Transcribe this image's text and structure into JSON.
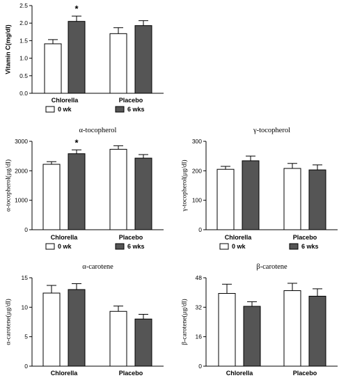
{
  "colors": {
    "bar_0wk": "#ffffff",
    "bar_6wks": "#555555",
    "stroke": "#000000"
  },
  "chart_data": [
    {
      "id": "vitc",
      "type": "bar",
      "title": "",
      "ylabel": "Vitamin C(mg/dl)",
      "ylim": [
        0,
        2.5
      ],
      "yticks": [
        "0.0",
        "0.5",
        "1.0",
        "1.5",
        "2.0",
        "2.5"
      ],
      "categories": [
        "Chlorella",
        "Placebo"
      ],
      "series": [
        {
          "name": "0 wk",
          "values": [
            1.41,
            1.7
          ],
          "errors": [
            0.12,
            0.17
          ]
        },
        {
          "name": "6 wks",
          "values": [
            2.05,
            1.93
          ],
          "errors": [
            0.15,
            0.14
          ]
        }
      ],
      "annotations": [
        {
          "text": "*",
          "category": 0,
          "series": 1
        }
      ],
      "legend": [
        "0 wk",
        "6 wks"
      ]
    },
    {
      "id": "atoc",
      "type": "bar",
      "title": "α-tocopherol",
      "ylabel": "α-tocopherol(μg/dl)",
      "ylim": [
        0,
        3000
      ],
      "yticks": [
        "0",
        "1000",
        "2000",
        "3000"
      ],
      "categories": [
        "Chlorella",
        "Placebo"
      ],
      "series": [
        {
          "name": "0 wk",
          "values": [
            2220,
            2730
          ],
          "errors": [
            90,
            120
          ]
        },
        {
          "name": "6 wks",
          "values": [
            2580,
            2430
          ],
          "errors": [
            130,
            120
          ]
        }
      ],
      "annotations": [
        {
          "text": "*",
          "category": 0,
          "series": 1
        }
      ],
      "legend": [
        "0 wk",
        "6 wks"
      ]
    },
    {
      "id": "gtoc",
      "type": "bar",
      "title": "γ-tocopherol",
      "ylabel": "γ-tocopherol(μg/dl)",
      "ylim": [
        0,
        300
      ],
      "yticks": [
        "0",
        "100",
        "200",
        "300"
      ],
      "categories": [
        "Chlorella",
        "Placebo"
      ],
      "series": [
        {
          "name": "0 wk",
          "values": [
            205,
            208
          ],
          "errors": [
            10,
            17
          ]
        },
        {
          "name": "6 wks",
          "values": [
            234,
            203
          ],
          "errors": [
            16,
            17
          ]
        }
      ],
      "annotations": [],
      "legend": [
        "0 wk",
        "6 wks"
      ]
    },
    {
      "id": "acar",
      "type": "bar",
      "title": "α-carotene",
      "ylabel": "α-carotene(μg/dl)",
      "ylim": [
        0,
        15
      ],
      "yticks": [
        "0",
        "5",
        "10",
        "15"
      ],
      "categories": [
        "Chlorella",
        "Placebo"
      ],
      "series": [
        {
          "name": "0 wk",
          "values": [
            12.4,
            9.3
          ],
          "errors": [
            1.3,
            0.9
          ]
        },
        {
          "name": "6 wks",
          "values": [
            13.0,
            8.0
          ],
          "errors": [
            1.0,
            0.8
          ]
        }
      ],
      "annotations": [],
      "legend": []
    },
    {
      "id": "bcar",
      "type": "bar",
      "title": "β-carotene",
      "ylabel": "β-carotene(μg/dl)",
      "ylim": [
        0,
        48
      ],
      "yticks": [
        "0",
        "16",
        "32",
        "48"
      ],
      "categories": [
        "Chlorella",
        "Placebo"
      ],
      "series": [
        {
          "name": "0 wk",
          "values": [
            39.5,
            41.0
          ],
          "errors": [
            5.0,
            4.0
          ]
        },
        {
          "name": "6 wks",
          "values": [
            32.5,
            38.0
          ],
          "errors": [
            2.5,
            4.0
          ]
        }
      ],
      "annotations": [],
      "legend": []
    }
  ]
}
